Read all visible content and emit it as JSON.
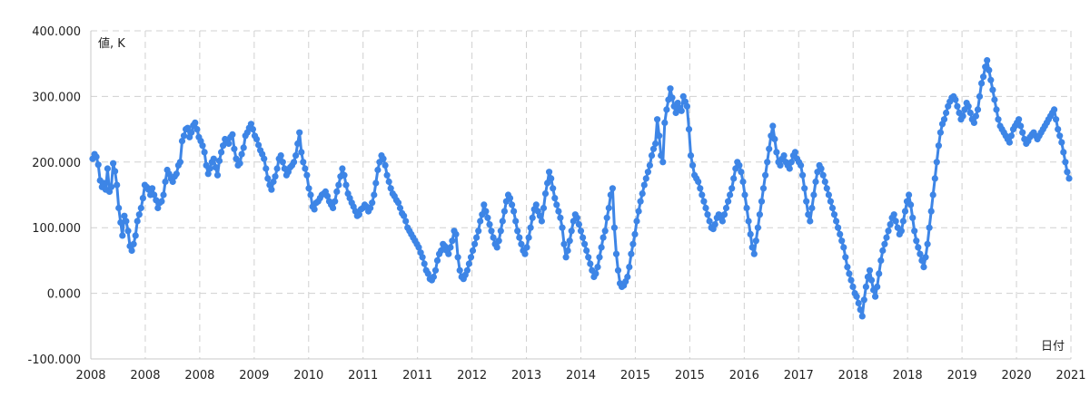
{
  "chart_data": {
    "type": "line",
    "ylabel": "値, K",
    "xlabel": "日付",
    "ylim": [
      -100,
      400
    ],
    "grid": true,
    "y_ticks": [
      "-100.000",
      "0.000",
      "100.000",
      "200.000",
      "300.000",
      "400.000"
    ],
    "x_ticks": [
      "2008",
      "2008",
      "2008",
      "2009",
      "2010",
      "2011",
      "2011",
      "2012",
      "2013",
      "2014",
      "2015",
      "2015",
      "2016",
      "2017",
      "2018",
      "2018",
      "2019",
      "2020",
      "2021"
    ],
    "series_color": "#3d85e6",
    "series": [
      {
        "values": [
          205,
          212,
          208,
          196,
          172,
          162,
          168,
          158,
          190,
          155,
          162,
          198,
          186,
          165,
          130,
          108,
          88,
          118,
          110,
          95,
          72,
          65,
          75,
          88,
          110,
          120,
          130,
          145,
          165,
          162,
          158,
          150,
          160,
          150,
          142,
          130,
          138,
          140,
          150,
          170,
          188,
          182,
          175,
          170,
          178,
          182,
          195,
          200,
          232,
          240,
          250,
          252,
          238,
          245,
          256,
          260,
          250,
          238,
          232,
          225,
          215,
          195,
          182,
          190,
          200,
          205,
          192,
          180,
          202,
          215,
          225,
          235,
          232,
          228,
          238,
          242,
          220,
          205,
          195,
          198,
          212,
          222,
          240,
          245,
          252,
          258,
          250,
          240,
          235,
          226,
          218,
          212,
          205,
          190,
          175,
          165,
          158,
          170,
          178,
          190,
          205,
          210,
          200,
          190,
          180,
          185,
          192,
          195,
          200,
          210,
          228,
          245,
          215,
          200,
          190,
          180,
          160,
          150,
          132,
          128,
          138,
          140,
          145,
          150,
          152,
          155,
          148,
          140,
          135,
          130,
          140,
          155,
          165,
          178,
          190,
          180,
          165,
          152,
          145,
          138,
          132,
          125,
          118,
          120,
          128,
          130,
          135,
          132,
          125,
          130,
          138,
          150,
          168,
          188,
          200,
          210,
          205,
          195,
          180,
          170,
          160,
          152,
          148,
          142,
          138,
          130,
          122,
          118,
          110,
          100,
          95,
          90,
          85,
          80,
          75,
          70,
          62,
          55,
          45,
          35,
          30,
          22,
          20,
          25,
          35,
          50,
          60,
          65,
          75,
          72,
          65,
          60,
          70,
          80,
          95,
          90,
          55,
          35,
          25,
          22,
          28,
          35,
          45,
          55,
          65,
          75,
          85,
          95,
          110,
          120,
          135,
          125,
          115,
          105,
          95,
          85,
          75,
          70,
          80,
          95,
          110,
          125,
          140,
          150,
          145,
          135,
          125,
          110,
          95,
          85,
          75,
          65,
          60,
          70,
          85,
          100,
          115,
          128,
          135,
          125,
          118,
          110,
          130,
          152,
          168,
          185,
          175,
          160,
          145,
          135,
          125,
          115,
          100,
          75,
          55,
          65,
          80,
          95,
          110,
          120,
          115,
          105,
          95,
          85,
          75,
          65,
          55,
          45,
          35,
          25,
          30,
          40,
          55,
          70,
          85,
          95,
          115,
          130,
          150,
          160,
          100,
          60,
          35,
          15,
          10,
          12,
          18,
          25,
          40,
          60,
          75,
          90,
          110,
          125,
          140,
          152,
          165,
          175,
          185,
          195,
          210,
          220,
          228,
          265,
          240,
          210,
          200,
          260,
          280,
          295,
          312,
          298,
          285,
          275,
          290,
          282,
          278,
          300,
          292,
          285,
          250,
          210,
          195,
          180,
          175,
          170,
          160,
          150,
          140,
          130,
          120,
          110,
          100,
          98,
          105,
          115,
          120,
          115,
          110,
          120,
          130,
          140,
          150,
          160,
          175,
          190,
          200,
          195,
          185,
          170,
          150,
          130,
          110,
          90,
          70,
          60,
          80,
          100,
          120,
          140,
          160,
          180,
          200,
          220,
          240,
          255,
          235,
          215,
          200,
          195,
          205,
          210,
          200,
          195,
          190,
          200,
          210,
          215,
          205,
          200,
          195,
          180,
          160,
          140,
          120,
          110,
          130,
          150,
          170,
          185,
          195,
          190,
          180,
          170,
          160,
          150,
          140,
          130,
          120,
          110,
          100,
          90,
          80,
          70,
          55,
          40,
          30,
          20,
          10,
          0,
          -5,
          -15,
          -25,
          -35,
          -10,
          10,
          25,
          35,
          20,
          5,
          -5,
          10,
          30,
          50,
          65,
          75,
          85,
          95,
          105,
          115,
          120,
          110,
          100,
          90,
          95,
          110,
          125,
          140,
          150,
          135,
          115,
          95,
          80,
          70,
          60,
          50,
          40,
          55,
          75,
          100,
          125,
          150,
          175,
          200,
          225,
          245,
          258,
          265,
          275,
          285,
          292,
          298,
          300,
          295,
          285,
          275,
          265,
          270,
          280,
          290,
          285,
          275,
          265,
          260,
          270,
          280,
          300,
          320,
          330,
          345,
          355,
          340,
          325,
          310,
          295,
          280,
          265,
          255,
          250,
          245,
          240,
          235,
          230,
          240,
          250,
          255,
          260,
          265,
          255,
          245,
          235,
          228,
          232,
          238,
          242,
          245,
          240,
          235,
          240,
          245,
          250,
          255,
          260,
          265,
          270,
          275,
          280,
          265,
          250,
          240,
          230,
          215,
          200,
          185,
          175
        ]
      }
    ]
  }
}
